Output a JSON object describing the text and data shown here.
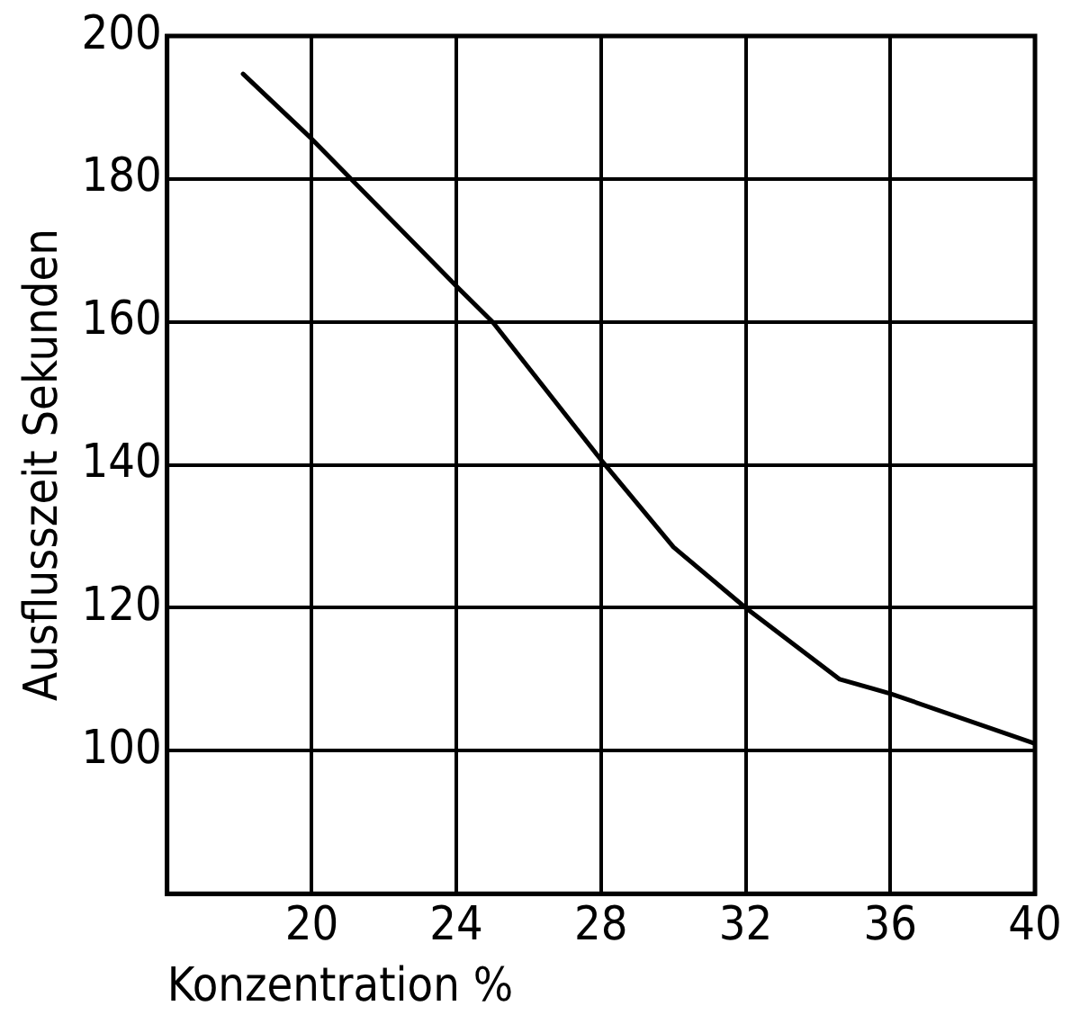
{
  "chart_data": {
    "type": "line",
    "xlabel": "Konzentration %",
    "ylabel": "Ausflusszeit Sekunden",
    "x": [
      18.1,
      20,
      24,
      25,
      28,
      30,
      32,
      34.6,
      36,
      40
    ],
    "series": [
      {
        "color": "#000000",
        "values": [
          194.7,
          185.6,
          165,
          160,
          140.7,
          128.5,
          120,
          110,
          108,
          101
        ]
      }
    ],
    "xlim": [
      16,
      40
    ],
    "xticks": [
      20,
      24,
      28,
      32,
      36,
      40
    ],
    "ylim": [
      80,
      200
    ],
    "yticks": [
      100,
      120,
      140,
      160,
      180,
      200
    ],
    "grid": true,
    "legend": false,
    "marker": "none",
    "line_style": "solid"
  }
}
